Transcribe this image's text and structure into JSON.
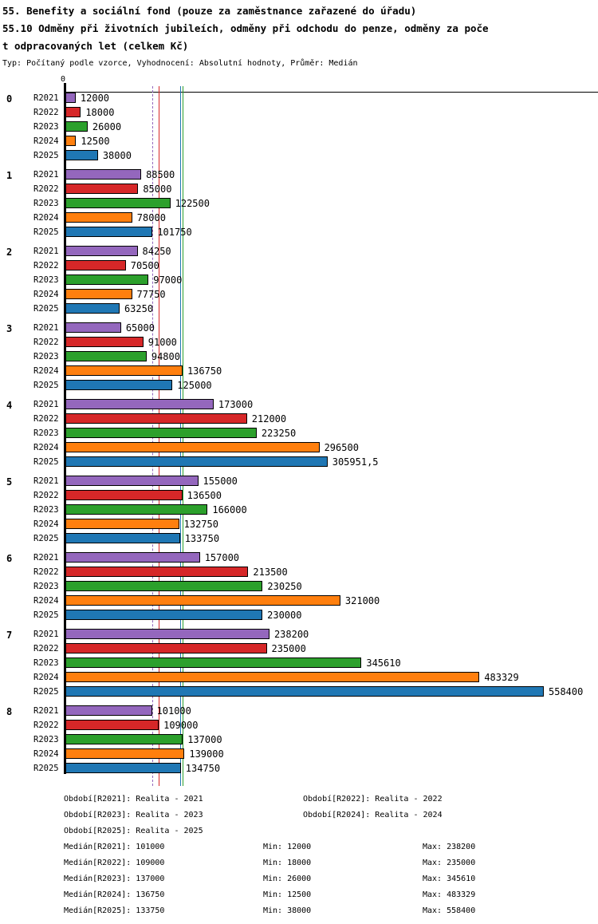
{
  "header": {
    "title_lines": [
      "55. Benefity a sociální fond (pouze za zaměstnance zařazené do úřadu)",
      "55.10 Odměny při životních jubileích, odměny při odchodu do penze, odměny za poče",
      "t odpracovaných let (celkem Kč)"
    ],
    "subtitle": "Typ: Počítaný podle vzorce, Vyhodnocení: Absolutní hodnoty, Průměr: Medián"
  },
  "chart_data": {
    "type": "bar",
    "orientation": "horizontal",
    "title": "55.10 Odměny při životních jubileích, odměny při odchodu do penze, odměny za počet odpracovaných let (celkem Kč)",
    "axis": {
      "zero_label": "0",
      "xlim": [
        0,
        621000
      ],
      "grid": false
    },
    "series": [
      {
        "name": "R2021",
        "color": "#9467bd"
      },
      {
        "name": "R2022",
        "color": "#d62728"
      },
      {
        "name": "R2023",
        "color": "#2ca02c"
      },
      {
        "name": "R2024",
        "color": "#ff7f0e"
      },
      {
        "name": "R2025",
        "color": "#1f77b4"
      }
    ],
    "groups": [
      {
        "label": "0",
        "values": [
          12000,
          18000,
          26000,
          12500,
          38000
        ],
        "value_labels": [
          "12000",
          "18000",
          "26000",
          "12500",
          "38000"
        ]
      },
      {
        "label": "1",
        "values": [
          88500,
          85000,
          122500,
          78000,
          101750
        ],
        "value_labels": [
          "88500",
          "85000",
          "122500",
          "78000",
          "101750"
        ]
      },
      {
        "label": "2",
        "values": [
          84250,
          70500,
          97000,
          77750,
          63250
        ],
        "value_labels": [
          "84250",
          "70500",
          "97000",
          "77750",
          "63250"
        ]
      },
      {
        "label": "3",
        "values": [
          65000,
          91000,
          94800,
          136750,
          125000
        ],
        "value_labels": [
          "65000",
          "91000",
          "94800",
          "136750",
          "125000"
        ]
      },
      {
        "label": "4",
        "values": [
          173000,
          212000,
          223250,
          296500,
          305951.5
        ],
        "value_labels": [
          "173000",
          "212000",
          "223250",
          "296500",
          "305951,5"
        ]
      },
      {
        "label": "5",
        "values": [
          155000,
          136500,
          166000,
          132750,
          133750
        ],
        "value_labels": [
          "155000",
          "136500",
          "166000",
          "132750",
          "133750"
        ]
      },
      {
        "label": "6",
        "values": [
          157000,
          213500,
          230250,
          321000,
          230000
        ],
        "value_labels": [
          "157000",
          "213500",
          "230250",
          "321000",
          "230000"
        ]
      },
      {
        "label": "7",
        "values": [
          238200,
          235000,
          345610,
          483329,
          558400
        ],
        "value_labels": [
          "238200",
          "235000",
          "345610",
          "483329",
          "558400"
        ]
      },
      {
        "label": "8",
        "values": [
          101000,
          109000,
          137000,
          139000,
          134750
        ],
        "value_labels": [
          "101000",
          "109000",
          "137000",
          "139000",
          "134750"
        ]
      }
    ],
    "median_lines": [
      {
        "series": "R2021",
        "value": 101000,
        "color": "#9467bd",
        "style": "dashed"
      },
      {
        "series": "R2022",
        "value": 109000,
        "color": "#d62728",
        "style": "solid"
      },
      {
        "series": "R2025",
        "value": 133750,
        "color": "#1f77b4",
        "style": "solid"
      },
      {
        "series": "R2024",
        "value": 136750,
        "color": "#ff7f0e",
        "style": "solid"
      },
      {
        "series": "R2023",
        "value": 137000,
        "color": "#2ca02c",
        "style": "solid"
      }
    ]
  },
  "legend": {
    "entries": [
      "Období[R2021]: Realita - 2021",
      "Období[R2022]: Realita - 2022",
      "Období[R2023]: Realita - 2023",
      "Období[R2024]: Realita - 2024",
      "Období[R2025]: Realita - 2025"
    ]
  },
  "stats": [
    {
      "median": "Medián[R2021]: 101000",
      "min": "Min: 12000",
      "max": "Max: 238200"
    },
    {
      "median": "Medián[R2022]: 109000",
      "min": "Min: 18000",
      "max": "Max: 235000"
    },
    {
      "median": "Medián[R2023]: 137000",
      "min": "Min: 26000",
      "max": "Max: 345610"
    },
    {
      "median": "Medián[R2024]: 136750",
      "min": "Min: 12500",
      "max": "Max: 483329"
    },
    {
      "median": "Medián[R2025]: 133750",
      "min": "Min: 38000",
      "max": "Max: 558400"
    }
  ]
}
